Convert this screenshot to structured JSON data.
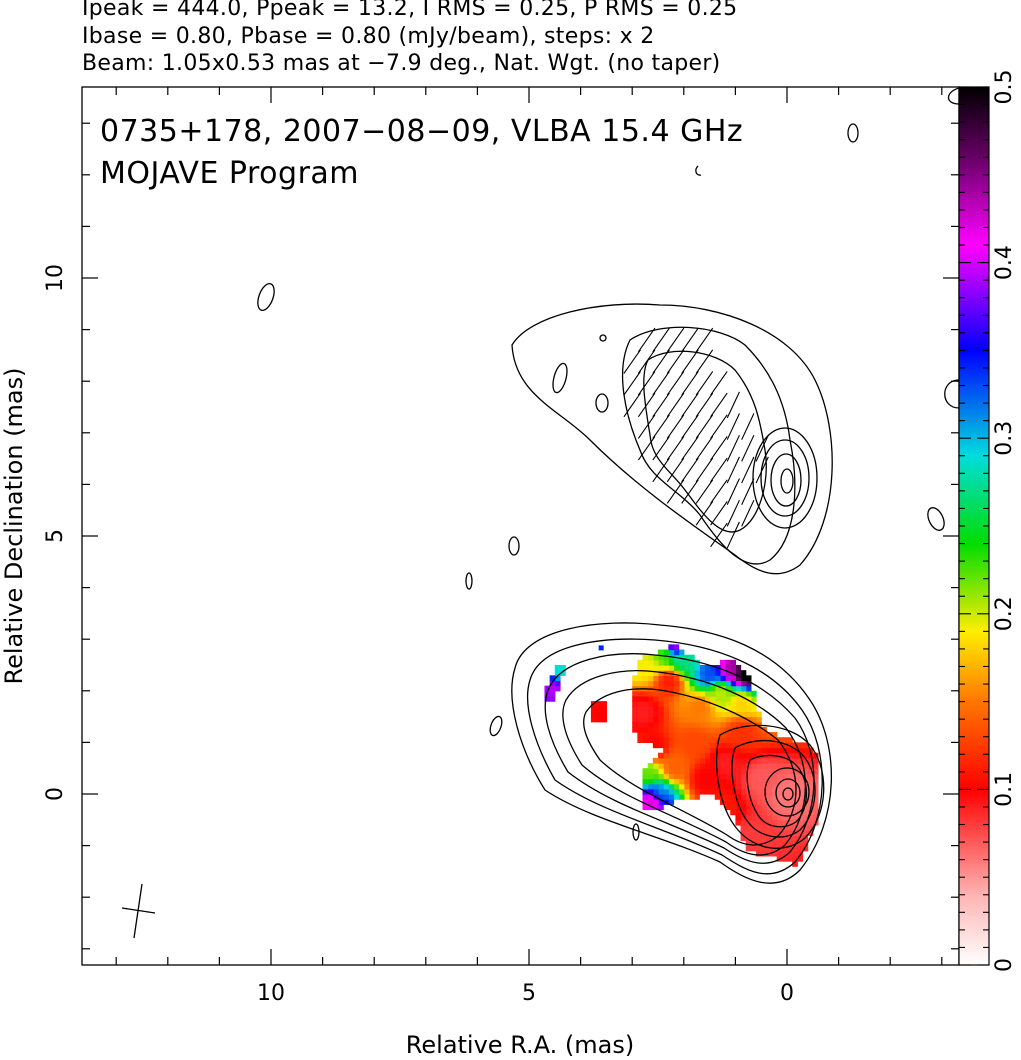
{
  "header": {
    "line1": "Ipeak = 444.0, Ppeak = 13.2, I RMS = 0.25, P RMS = 0.25",
    "line2": "Ibase = 0.80, Pbase = 0.80 (mJy/beam), steps: x 2",
    "line3": "Beam: 1.05x0.53 mas at −7.9 deg., Nat. Wgt. (no taper)"
  },
  "chart_data": {
    "type": "heatmap",
    "source_label": "0735+178, 2007−08−09, VLBA 15.4 GHz",
    "program_label": "MOJAVE Program",
    "xlabel": "Relative R.A. (mas)",
    "ylabel": "Relative Declination (mas)",
    "xlim": [
      13.5,
      -3.4
    ],
    "ylim": [
      -3.3,
      13.7
    ],
    "x_ticks": [
      10,
      5,
      0
    ],
    "y_ticks": [
      0,
      5,
      10
    ],
    "x_tick_labels": [
      "10",
      "5",
      "0"
    ],
    "y_tick_labels": [
      "0",
      "5",
      "10"
    ],
    "colorbar": {
      "range": [
        0,
        0.5
      ],
      "ticks": [
        0,
        0.1,
        0.2,
        0.3,
        0.4,
        0.5
      ],
      "tick_labels": [
        "0",
        "0.1",
        "0.2",
        "0.3",
        "0.4",
        "0.5"
      ]
    },
    "beam": {
      "major_mas": 1.05,
      "minor_mas": 0.53,
      "pa_deg": -7.9
    },
    "fractional_polarization_regions": [
      {
        "x": 0.0,
        "y": 0.0,
        "value": 0.06
      },
      {
        "x": 0.5,
        "y": 0.3,
        "value": 0.07
      },
      {
        "x": 0.7,
        "y": -0.8,
        "value": 0.08
      },
      {
        "x": 1.2,
        "y": 0.6,
        "value": 0.09
      },
      {
        "x": 1.6,
        "y": 0.3,
        "value": 0.1
      },
      {
        "x": 1.3,
        "y": -0.3,
        "value": 0.11
      },
      {
        "x": 0.9,
        "y": 1.2,
        "value": 0.12
      },
      {
        "x": 1.8,
        "y": 1.0,
        "value": 0.13
      },
      {
        "x": 2.2,
        "y": 0.5,
        "value": 0.14
      },
      {
        "x": 2.6,
        "y": 0.9,
        "value": 0.1
      },
      {
        "x": 2.8,
        "y": 1.6,
        "value": 0.09
      },
      {
        "x": 2.3,
        "y": 2.2,
        "value": 0.11
      },
      {
        "x": 1.7,
        "y": 1.7,
        "value": 0.15
      },
      {
        "x": 1.3,
        "y": 2.0,
        "value": 0.2
      },
      {
        "x": 0.9,
        "y": 1.8,
        "value": 0.18
      },
      {
        "x": 2.0,
        "y": 2.6,
        "value": 0.27
      },
      {
        "x": 2.4,
        "y": 2.7,
        "value": 0.22
      },
      {
        "x": 2.7,
        "y": 2.5,
        "value": 0.19
      },
      {
        "x": 2.2,
        "y": 2.9,
        "value": 0.4
      },
      {
        "x": 1.1,
        "y": 2.4,
        "value": 0.44
      },
      {
        "x": 0.8,
        "y": 2.35,
        "value": 0.52
      },
      {
        "x": 1.5,
        "y": 2.3,
        "value": 0.33
      },
      {
        "x": 2.7,
        "y": 0.4,
        "value": 0.22
      },
      {
        "x": 2.5,
        "y": 0.0,
        "value": 0.3
      },
      {
        "x": 2.6,
        "y": -0.1,
        "value": 0.44
      },
      {
        "x": 4.5,
        "y": 2.1,
        "value": 0.4
      },
      {
        "x": 4.4,
        "y": 2.3,
        "value": 0.28
      },
      {
        "x": 3.6,
        "y": 1.6,
        "value": 0.1
      },
      {
        "x": 3.6,
        "y": 2.8,
        "value": 0.34
      }
    ]
  }
}
